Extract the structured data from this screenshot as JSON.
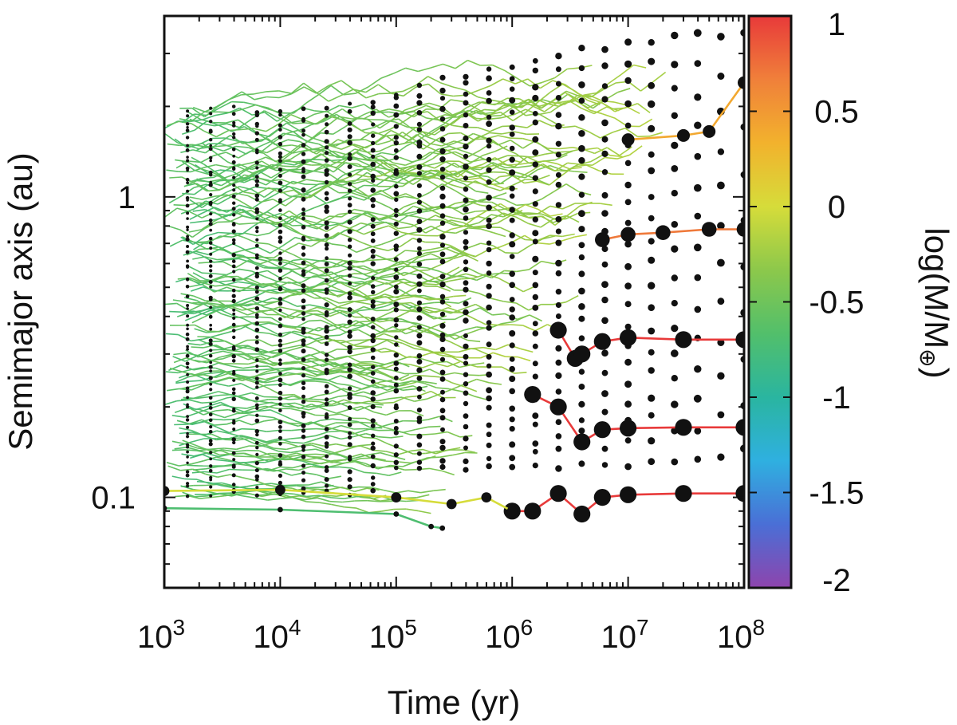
{
  "chart_data": {
    "type": "scatter",
    "title": "",
    "xlabel": "Time (yr)",
    "ylabel": "Semimajor axis (au)",
    "xscale": "log",
    "yscale": "log",
    "xlim": [
      1000,
      100000000
    ],
    "ylim": [
      0.05,
      4.0
    ],
    "x_ticks": [
      {
        "value": 1000,
        "base": "10",
        "exp": "3"
      },
      {
        "value": 10000,
        "base": "10",
        "exp": "4"
      },
      {
        "value": 100000,
        "base": "10",
        "exp": "5"
      },
      {
        "value": 1000000,
        "base": "10",
        "exp": "6"
      },
      {
        "value": 10000000,
        "base": "10",
        "exp": "7"
      },
      {
        "value": 100000000,
        "base": "10",
        "exp": "8"
      }
    ],
    "y_ticks": [
      {
        "value": 0.1,
        "label": "0.1"
      },
      {
        "value": 1,
        "label": "1"
      }
    ],
    "grid": false,
    "colorbar": {
      "label": "log(M/M⊕)",
      "range": [
        -2,
        1
      ],
      "ticks": [
        {
          "value": 1,
          "label": "1"
        },
        {
          "value": 0.5,
          "label": "0.5"
        },
        {
          "value": 0,
          "label": "0"
        },
        {
          "value": -0.5,
          "label": "-0.5"
        },
        {
          "value": -1,
          "label": "-1"
        },
        {
          "value": -1.5,
          "label": "-1.5"
        },
        {
          "value": -2,
          "label": "-2"
        }
      ],
      "colors": [
        "#8e44ad",
        "#4a6fd6",
        "#2fb0e0",
        "#2ab5a0",
        "#52bf6b",
        "#8cc84b",
        "#d6dc3a",
        "#f2b22d",
        "#f0803a",
        "#e83a3a"
      ]
    },
    "highlighted_tracks": [
      {
        "log_mass_final": 1.0,
        "points": [
          [
            1000000,
            0.09
          ],
          [
            1500000,
            0.09
          ],
          [
            2500000,
            0.103
          ],
          [
            4000000,
            0.088
          ],
          [
            6000000,
            0.1
          ],
          [
            10000000,
            0.102
          ],
          [
            30000000,
            0.103
          ],
          [
            100000000,
            0.103
          ]
        ]
      },
      {
        "log_mass_final": 1.0,
        "points": [
          [
            1500000,
            0.22
          ],
          [
            2500000,
            0.2
          ],
          [
            4000000,
            0.153
          ],
          [
            6000000,
            0.168
          ],
          [
            10000000,
            0.17
          ],
          [
            30000000,
            0.171
          ],
          [
            100000000,
            0.171
          ]
        ]
      },
      {
        "log_mass_final": 1.0,
        "points": [
          [
            2500000,
            0.36
          ],
          [
            3500000,
            0.29
          ],
          [
            4000000,
            0.3
          ],
          [
            6000000,
            0.33
          ],
          [
            10000000,
            0.34
          ],
          [
            30000000,
            0.335
          ],
          [
            100000000,
            0.335
          ]
        ]
      },
      {
        "log_mass_final": 0.7,
        "points": [
          [
            6000000,
            0.72
          ],
          [
            10000000,
            0.75
          ],
          [
            20000000,
            0.76
          ],
          [
            50000000,
            0.78
          ],
          [
            100000000,
            0.78
          ]
        ]
      },
      {
        "log_mass_final": 0.4,
        "points": [
          [
            10000000,
            1.55
          ],
          [
            30000000,
            1.6
          ],
          [
            50000000,
            1.65
          ],
          [
            100000000,
            2.4
          ]
        ]
      },
      {
        "log_mass_final": 0.0,
        "points": [
          [
            1000,
            0.105
          ],
          [
            10000,
            0.106
          ],
          [
            100000,
            0.1
          ],
          [
            300000,
            0.095
          ],
          [
            600000,
            0.1
          ],
          [
            1000000,
            0.09
          ]
        ]
      },
      {
        "log_mass_final": -0.7,
        "points": [
          [
            1000,
            0.092
          ],
          [
            10000,
            0.091
          ],
          [
            100000,
            0.088
          ],
          [
            200000,
            0.08
          ],
          [
            250000,
            0.079
          ]
        ]
      }
    ]
  },
  "colorbar_label_parts": {
    "prefix": "log(M/M",
    "symbol": "⊕",
    "suffix": ")"
  }
}
